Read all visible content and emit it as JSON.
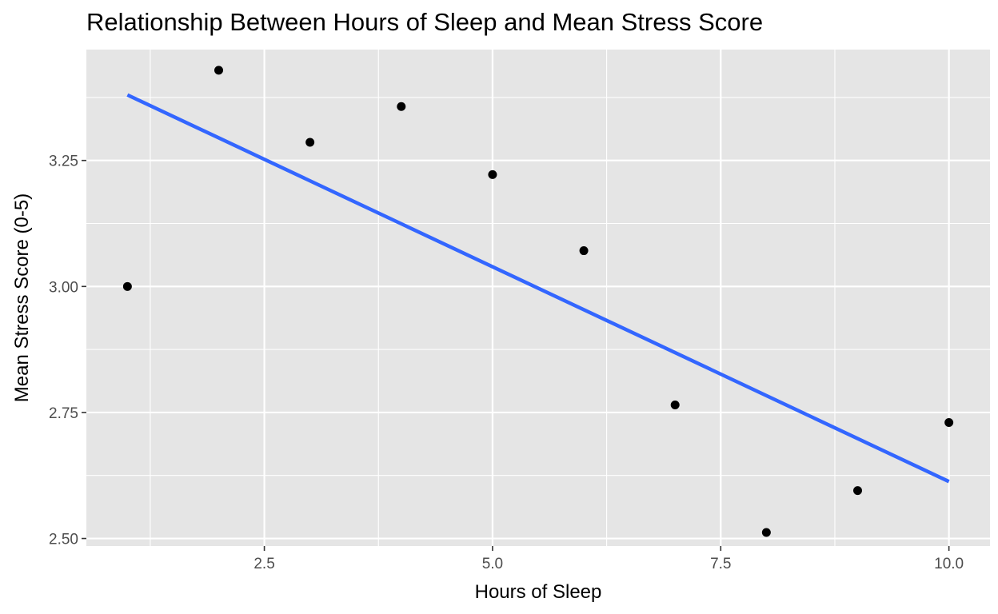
{
  "chart_data": {
    "type": "scatter",
    "title": "Relationship Between Hours of Sleep and Mean Stress Score",
    "xlabel": "Hours of Sleep",
    "ylabel": "Mean Stress Score (0-5)",
    "xlim": [
      0.55,
      10.45
    ],
    "ylim": [
      2.485,
      3.47
    ],
    "x_ticks": [
      2.5,
      5.0,
      7.5,
      10.0
    ],
    "x_tick_labels": [
      "2.5",
      "5.0",
      "7.5",
      "10.0"
    ],
    "y_ticks": [
      2.5,
      2.75,
      3.0,
      3.25
    ],
    "y_tick_labels": [
      "2.50",
      "2.75",
      "3.00",
      "3.25"
    ],
    "grid": true,
    "panel_background": "#e5e5e5",
    "grid_color": "#ffffff",
    "point_color": "#000000",
    "series": [
      {
        "x": [
          1,
          2,
          3,
          4,
          5,
          6,
          7,
          8,
          9,
          10
        ],
        "y": [
          3.0,
          3.429,
          3.286,
          3.357,
          3.222,
          3.071,
          2.765,
          2.512,
          2.595,
          2.73
        ]
      }
    ],
    "trend_line": {
      "type": "linear",
      "x": [
        1,
        10
      ],
      "y": [
        3.38,
        2.613
      ],
      "color": "#3366ff"
    }
  }
}
